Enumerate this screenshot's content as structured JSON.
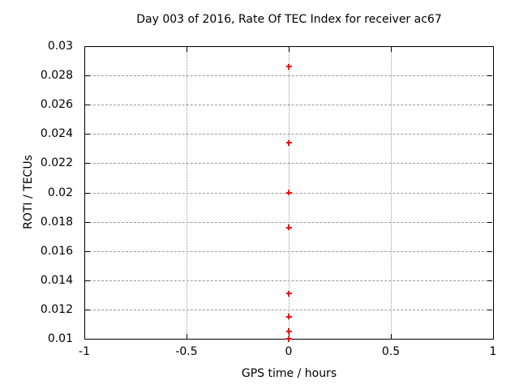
{
  "chart_data": {
    "type": "scatter",
    "title": "Day 003 of 2016, Rate Of TEC Index for receiver ac67",
    "xlabel": "GPS time / hours",
    "ylabel": "ROTI / TECUs",
    "xlim": [
      -1,
      1
    ],
    "ylim": [
      0.01,
      0.03
    ],
    "xticks": {
      "values": [
        -1,
        -0.5,
        0,
        0.5,
        1
      ],
      "labels": [
        "-1",
        "-0.5",
        "0",
        "0.5",
        "1"
      ]
    },
    "yticks": {
      "values": [
        0.01,
        0.012,
        0.014,
        0.016,
        0.018,
        0.02,
        0.022,
        0.024,
        0.026,
        0.028,
        0.03
      ],
      "labels": [
        "0.01",
        "0.012",
        "0.014",
        "0.016",
        "0.018",
        "0.02",
        "0.022",
        "0.024",
        "0.026",
        "0.028",
        "0.03"
      ]
    },
    "grid": true,
    "legend": "none",
    "marker": {
      "shape": "plus",
      "color": "#ff0000",
      "size": 7,
      "stroke": 2
    },
    "colors": {
      "border": "#000000",
      "gridline": "#999999",
      "background": "#ffffff",
      "text": "#000000"
    },
    "series": [
      {
        "name": "ROTI",
        "x": [
          0,
          0,
          0,
          0,
          0,
          0,
          0,
          0
        ],
        "y": [
          0.0286,
          0.0234,
          0.02,
          0.0176,
          0.0131,
          0.0115,
          0.0105,
          0.01
        ]
      }
    ]
  }
}
